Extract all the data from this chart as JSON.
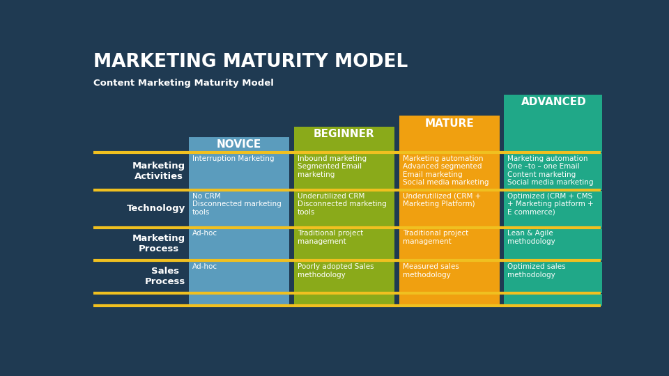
{
  "title": "MARKETING MATURITY MODEL",
  "subtitle": "Content Marketing Maturity Model",
  "bg_color": "#1f3a52",
  "gold_color": "#f0c020",
  "columns": [
    "NOVICE",
    "BEGINNER",
    "MATURE",
    "ADVANCED"
  ],
  "col_colors": [
    "#5b9cbd",
    "#8aaa1a",
    "#f0a010",
    "#20a888"
  ],
  "rows": [
    {
      "label": "Marketing\nActivities",
      "cells": [
        "Interruption Marketing",
        "Inbound marketing\nSegmented Email\nmarketing",
        "Marketing automation\nAdvanced segmented\nEmail marketing\nSocial media marketing",
        "Marketing automation\nOne –to – one Email\nContent marketing\nSocial media marketing"
      ]
    },
    {
      "label": "Technology",
      "cells": [
        "No CRM\nDisconnected marketing\ntools",
        "Underutilized CRM\nDisconnected marketing\ntools",
        "Underutilized (CRM +\nMarketing Platform)",
        "Optimized (CRM + CMS\n+ Marketing platform +\nE commerce)"
      ]
    },
    {
      "label": "Marketing\nProcess",
      "cells": [
        "Ad-hoc",
        "Traditional project\nmanagement",
        "Traditional project\nmanagement",
        "Lean & Agile\nmethodology"
      ]
    },
    {
      "label": "Sales\nProcess",
      "cells": [
        "Ad-hoc",
        "Poorly adopted Sales\nmethodology",
        "Measured sales\nmethodology",
        "Optimized sales\nmethodology"
      ]
    }
  ]
}
